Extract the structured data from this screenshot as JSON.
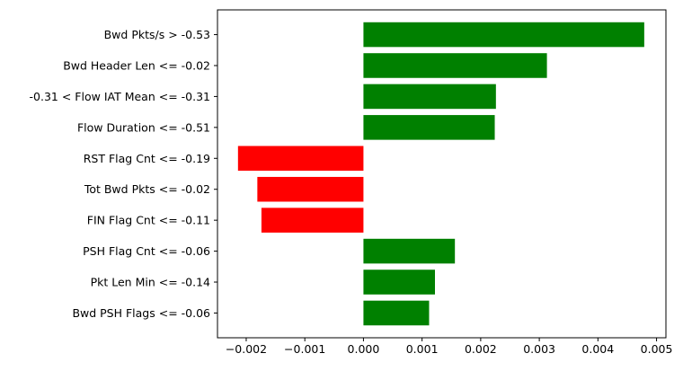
{
  "chart_data": {
    "type": "bar",
    "orientation": "horizontal",
    "categories": [
      "Bwd Pkts/s > -0.53",
      "Bwd Header Len <= -0.02",
      "-0.31 < Flow IAT Mean <= -0.31",
      "Flow Duration <= -0.51",
      "RST Flag Cnt <= -0.19",
      "Tot Bwd Pkts <= -0.02",
      "FIN Flag Cnt <= -0.11",
      "PSH Flag Cnt <= -0.06",
      "Pkt Len Min <= -0.14",
      "Bwd PSH Flags <= -0.06"
    ],
    "values": [
      0.00479,
      0.00313,
      0.00226,
      0.00224,
      -0.00214,
      -0.00181,
      -0.00174,
      0.00156,
      0.00122,
      0.00112
    ],
    "xlim": [
      -0.00249,
      0.00516
    ],
    "xticks": [
      -0.002,
      -0.001,
      0.0,
      0.001,
      0.002,
      0.003,
      0.004,
      0.005
    ],
    "xtick_labels": [
      "−0.002",
      "−0.001",
      "0.000",
      "0.001",
      "0.002",
      "0.003",
      "0.004",
      "0.005"
    ],
    "colors": {
      "positive": "#008000",
      "negative": "#ff0000"
    },
    "grid": false,
    "title": "",
    "xlabel": "",
    "ylabel": ""
  }
}
